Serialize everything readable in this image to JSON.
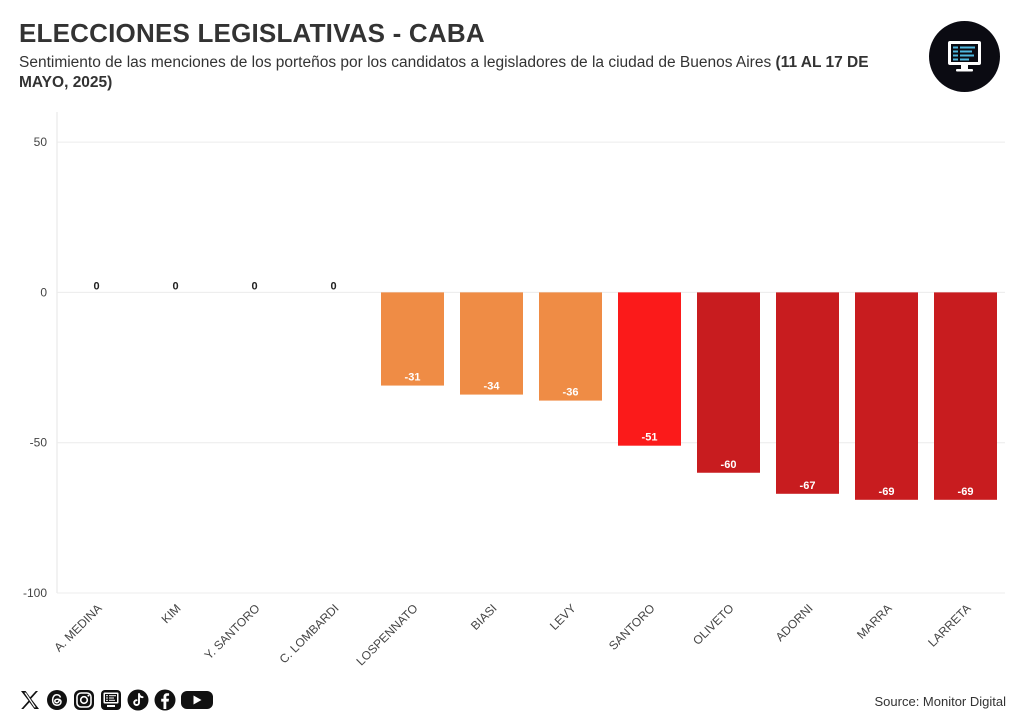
{
  "header": {
    "title": "ELECCIONES LEGISLATIVAS - CABA",
    "subtitle": "Sentimiento de las menciones de los porteños por los candidatos a legisladores de la ciudad de Buenos Aires ",
    "subtitle_bold": "(11 AL 17 DE MAYO, 2025)"
  },
  "footer": {
    "source": "Source: Monitor Digital",
    "social_icons": [
      "x-icon",
      "threads-icon",
      "instagram-icon",
      "tiktok-icon",
      "facebook-icon",
      "youtube-icon"
    ]
  },
  "chart_data": {
    "type": "bar",
    "title": "ELECCIONES LEGISLATIVAS - CABA",
    "xlabel": "",
    "ylabel": "",
    "categories": [
      "A. MEDINA",
      "KIM",
      "Y. SANTORO",
      "C. LOMBARDI",
      "LOSPENNATO",
      "BIASI",
      "LEVY",
      "SANTORO",
      "OLIVETO",
      "ADORNI",
      "MARRA",
      "LARRETA"
    ],
    "values": [
      0,
      0,
      0,
      0,
      -31,
      -34,
      -36,
      -51,
      -60,
      -67,
      -69,
      -69
    ],
    "colors": [
      "#ef8c45",
      "#ef8c45",
      "#ef8c45",
      "#ef8c45",
      "#ef8c45",
      "#ef8c45",
      "#ef8c45",
      "#fb1a1a",
      "#c81c1f",
      "#c81c1f",
      "#c81c1f",
      "#c81c1f"
    ],
    "ylim": [
      -100,
      60
    ],
    "yticks": [
      50,
      0,
      -50,
      -100
    ],
    "grid": true,
    "legend": "none"
  }
}
